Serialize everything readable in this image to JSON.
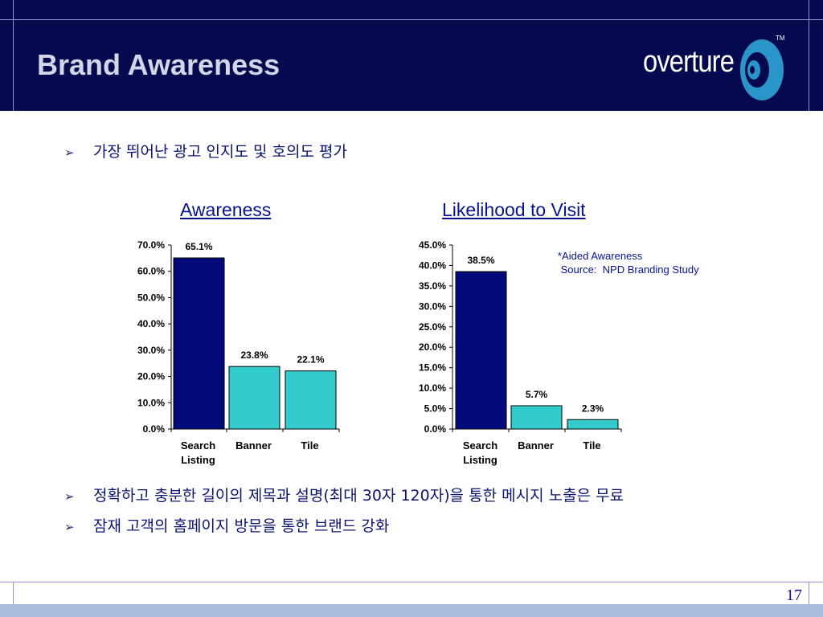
{
  "slide": {
    "title": "Brand Awareness",
    "logo": "overture",
    "trademark": "TM",
    "page_number": "17",
    "bullets_top": [
      "가장 뛰어난 광고 인지도 및 호의도 평가"
    ],
    "bullets_bottom": [
      "정확하고 충분한 길이의 제목과 설명(최대 30자 120자)을 통한 메시지  노출은 무료",
      "잠재 고객의 홈페이지 방문을 통한 브랜드 강화"
    ],
    "note": "*Aided Awareness\n Source:  NPD Branding Study",
    "bullet_glyph": "➢"
  },
  "colors": {
    "header": "#050a4e",
    "bar_primary": "#020a7a",
    "bar_secondary": "#33cccc",
    "title_text": "#0a1290"
  },
  "chart_data": [
    {
      "type": "bar",
      "title": "Awareness",
      "categories": [
        [
          "Search",
          "Listing"
        ],
        [
          "Banner"
        ],
        [
          "Tile"
        ]
      ],
      "values": [
        65.1,
        23.8,
        22.1
      ],
      "value_labels": [
        "65.1%",
        "23.8%",
        "22.1%"
      ],
      "ylim": [
        0,
        70
      ],
      "yticks": [
        0,
        10,
        20,
        30,
        40,
        50,
        60,
        70
      ],
      "ytick_labels": [
        "0.0%",
        "10.0%",
        "20.0%",
        "30.0%",
        "40.0%",
        "50.0%",
        "60.0%",
        "70.0%"
      ]
    },
    {
      "type": "bar",
      "title": "Likelihood to Visit",
      "categories": [
        [
          "Search",
          "Listing"
        ],
        [
          "Banner"
        ],
        [
          "Tile"
        ]
      ],
      "values": [
        38.5,
        5.7,
        2.3
      ],
      "value_labels": [
        "38.5%",
        "5.7%",
        "2.3%"
      ],
      "ylim": [
        0,
        45
      ],
      "yticks": [
        0,
        5,
        10,
        15,
        20,
        25,
        30,
        35,
        40,
        45
      ],
      "ytick_labels": [
        "0.0%",
        "5.0%",
        "10.0%",
        "15.0%",
        "20.0%",
        "25.0%",
        "30.0%",
        "35.0%",
        "40.0%",
        "45.0%"
      ]
    }
  ]
}
